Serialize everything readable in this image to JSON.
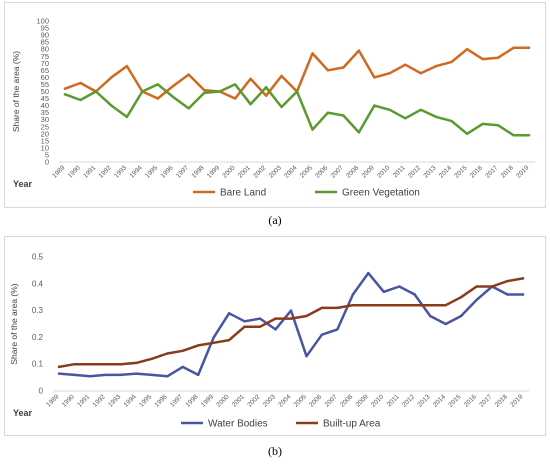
{
  "chart_data": [
    {
      "type": "line",
      "caption": "(a)",
      "ylabel": "Share of the area (%)",
      "xlabel": "Year",
      "ylim": [
        0,
        100
      ],
      "yticks": [
        "0",
        "5",
        "10",
        "15",
        "20",
        "25",
        "30",
        "35",
        "40",
        "45",
        "50",
        "55",
        "60",
        "65",
        "70",
        "75",
        "80",
        "85",
        "90",
        "95",
        "100"
      ],
      "grid": false,
      "legend": "bottom",
      "x": [
        "1989",
        "1990",
        "1991",
        "1992",
        "1993",
        "1994",
        "1995",
        "1996",
        "1997",
        "1998",
        "1999",
        "2000",
        "2001",
        "2002",
        "2003",
        "2004",
        "2005",
        "2006",
        "2007",
        "2008",
        "2009",
        "2010",
        "2011",
        "2012",
        "2013",
        "2014",
        "2015",
        "2016",
        "2017",
        "2018",
        "2019"
      ],
      "series": [
        {
          "name": "Bare Land",
          "color": "#d2691e",
          "values": [
            52,
            56,
            50,
            60,
            68,
            50,
            45,
            54,
            62,
            51,
            50,
            45,
            59,
            47,
            61,
            50,
            77,
            65,
            67,
            79,
            60,
            63,
            69,
            63,
            68,
            71,
            80,
            73,
            74,
            81,
            81
          ]
        },
        {
          "name": "Green Vegetation",
          "color": "#5a9a2f",
          "values": [
            48,
            44,
            50,
            40,
            32,
            50,
            55,
            46,
            38,
            49,
            50,
            55,
            41,
            53,
            39,
            50,
            23,
            35,
            33,
            21,
            40,
            37,
            31,
            37,
            32,
            29,
            20,
            27,
            26,
            19,
            19
          ]
        }
      ]
    },
    {
      "type": "line",
      "caption": "(b)",
      "ylabel": "Share of the area (%)",
      "xlabel": "Year",
      "ylim": [
        0,
        0.5
      ],
      "yticks": [
        "0",
        "0.1",
        "0.2",
        "0.3",
        "0.4",
        "0.5"
      ],
      "grid": false,
      "legend": "bottom",
      "x": [
        "1989",
        "1990",
        "1991",
        "1992",
        "1993",
        "1994",
        "1995",
        "1996",
        "1997",
        "1998",
        "1999",
        "2000",
        "2001",
        "2002",
        "2003",
        "2004",
        "2005",
        "2006",
        "2007",
        "2008",
        "2009",
        "2010",
        "2011",
        "2012",
        "2013",
        "2014",
        "2015",
        "2016",
        "2017",
        "2018",
        "2019"
      ],
      "series": [
        {
          "name": "Water Bodies",
          "color": "#4a55a2",
          "values": [
            0.065,
            0.06,
            0.055,
            0.06,
            0.06,
            0.065,
            0.06,
            0.055,
            0.09,
            0.06,
            0.2,
            0.29,
            0.26,
            0.27,
            0.23,
            0.3,
            0.13,
            0.21,
            0.23,
            0.36,
            0.44,
            0.37,
            0.39,
            0.36,
            0.28,
            0.25,
            0.28,
            0.34,
            0.39,
            0.36,
            0.36
          ]
        },
        {
          "name": "Built-up Area",
          "color": "#8b3a1a",
          "values": [
            0.09,
            0.1,
            0.1,
            0.1,
            0.1,
            0.105,
            0.12,
            0.14,
            0.15,
            0.17,
            0.18,
            0.19,
            0.24,
            0.24,
            0.27,
            0.27,
            0.28,
            0.31,
            0.31,
            0.32,
            0.32,
            0.32,
            0.32,
            0.32,
            0.32,
            0.32,
            0.35,
            0.39,
            0.39,
            0.41,
            0.42
          ]
        }
      ]
    }
  ]
}
